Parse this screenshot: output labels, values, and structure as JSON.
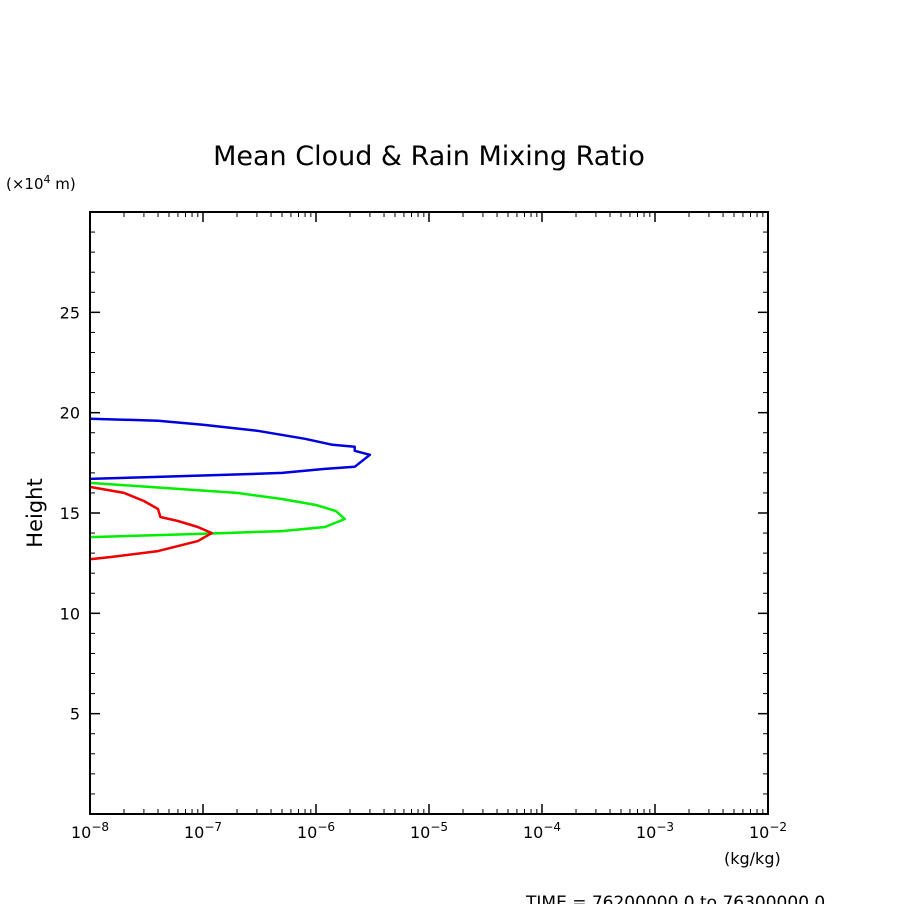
{
  "chart_data": {
    "type": "line",
    "title": "Mean Cloud & Rain Mixing Ratio",
    "ylabel": "Height",
    "y_unit_label_prefix": "(×10",
    "y_unit_label_exp": "4",
    "y_unit_label_suffix": " m)",
    "xlabel": "(kg/kg)",
    "x_scale": "log",
    "xlim": [
      1e-08,
      0.01
    ],
    "ylim": [
      0,
      30
    ],
    "x_ticks": [
      {
        "value": 1e-08,
        "base": "10",
        "exp": "−8"
      },
      {
        "value": 1e-07,
        "base": "10",
        "exp": "−7"
      },
      {
        "value": 1e-06,
        "base": "10",
        "exp": "−6"
      },
      {
        "value": 1e-05,
        "base": "10",
        "exp": "−5"
      },
      {
        "value": 0.0001,
        "base": "10",
        "exp": "−4"
      },
      {
        "value": 0.001,
        "base": "10",
        "exp": "−3"
      },
      {
        "value": 0.01,
        "base": "10",
        "exp": "−2"
      }
    ],
    "y_ticks": [
      5,
      10,
      15,
      20,
      25
    ],
    "grid": false,
    "footer": "TIME = 76200000.0 to 76300000.0",
    "series": [
      {
        "color": "#0000dd",
        "x": [
          1e-08,
          4e-08,
          1e-07,
          3e-07,
          8e-07,
          1.4e-06,
          2.2e-06,
          2.2e-06,
          3e-06,
          2.2e-06,
          1.2e-06,
          5e-07,
          1.5e-07,
          4e-08,
          1e-08
        ],
        "y": [
          19.7,
          19.6,
          19.4,
          19.1,
          18.7,
          18.4,
          18.3,
          18.1,
          17.9,
          17.3,
          17.2,
          17.0,
          16.9,
          16.8,
          16.7
        ]
      },
      {
        "color": "#00ee00",
        "x": [
          1e-08,
          6e-08,
          2e-07,
          5e-07,
          1e-06,
          1.5e-06,
          1.8e-06,
          1.2e-06,
          5e-07,
          1.5e-07,
          4e-08,
          1e-08
        ],
        "y": [
          16.5,
          16.2,
          16.0,
          15.7,
          15.4,
          15.1,
          14.7,
          14.3,
          14.1,
          14.0,
          13.9,
          13.8
        ]
      },
      {
        "color": "#ee0000",
        "x": [
          1e-08,
          2e-08,
          3e-08,
          4e-08,
          4.2e-08,
          6e-08,
          9e-08,
          1.2e-07,
          9e-08,
          4e-08,
          1.5e-08,
          1e-08
        ],
        "y": [
          16.3,
          16.0,
          15.6,
          15.2,
          14.8,
          14.6,
          14.3,
          14.0,
          13.6,
          13.1,
          12.8,
          12.7
        ]
      }
    ]
  }
}
